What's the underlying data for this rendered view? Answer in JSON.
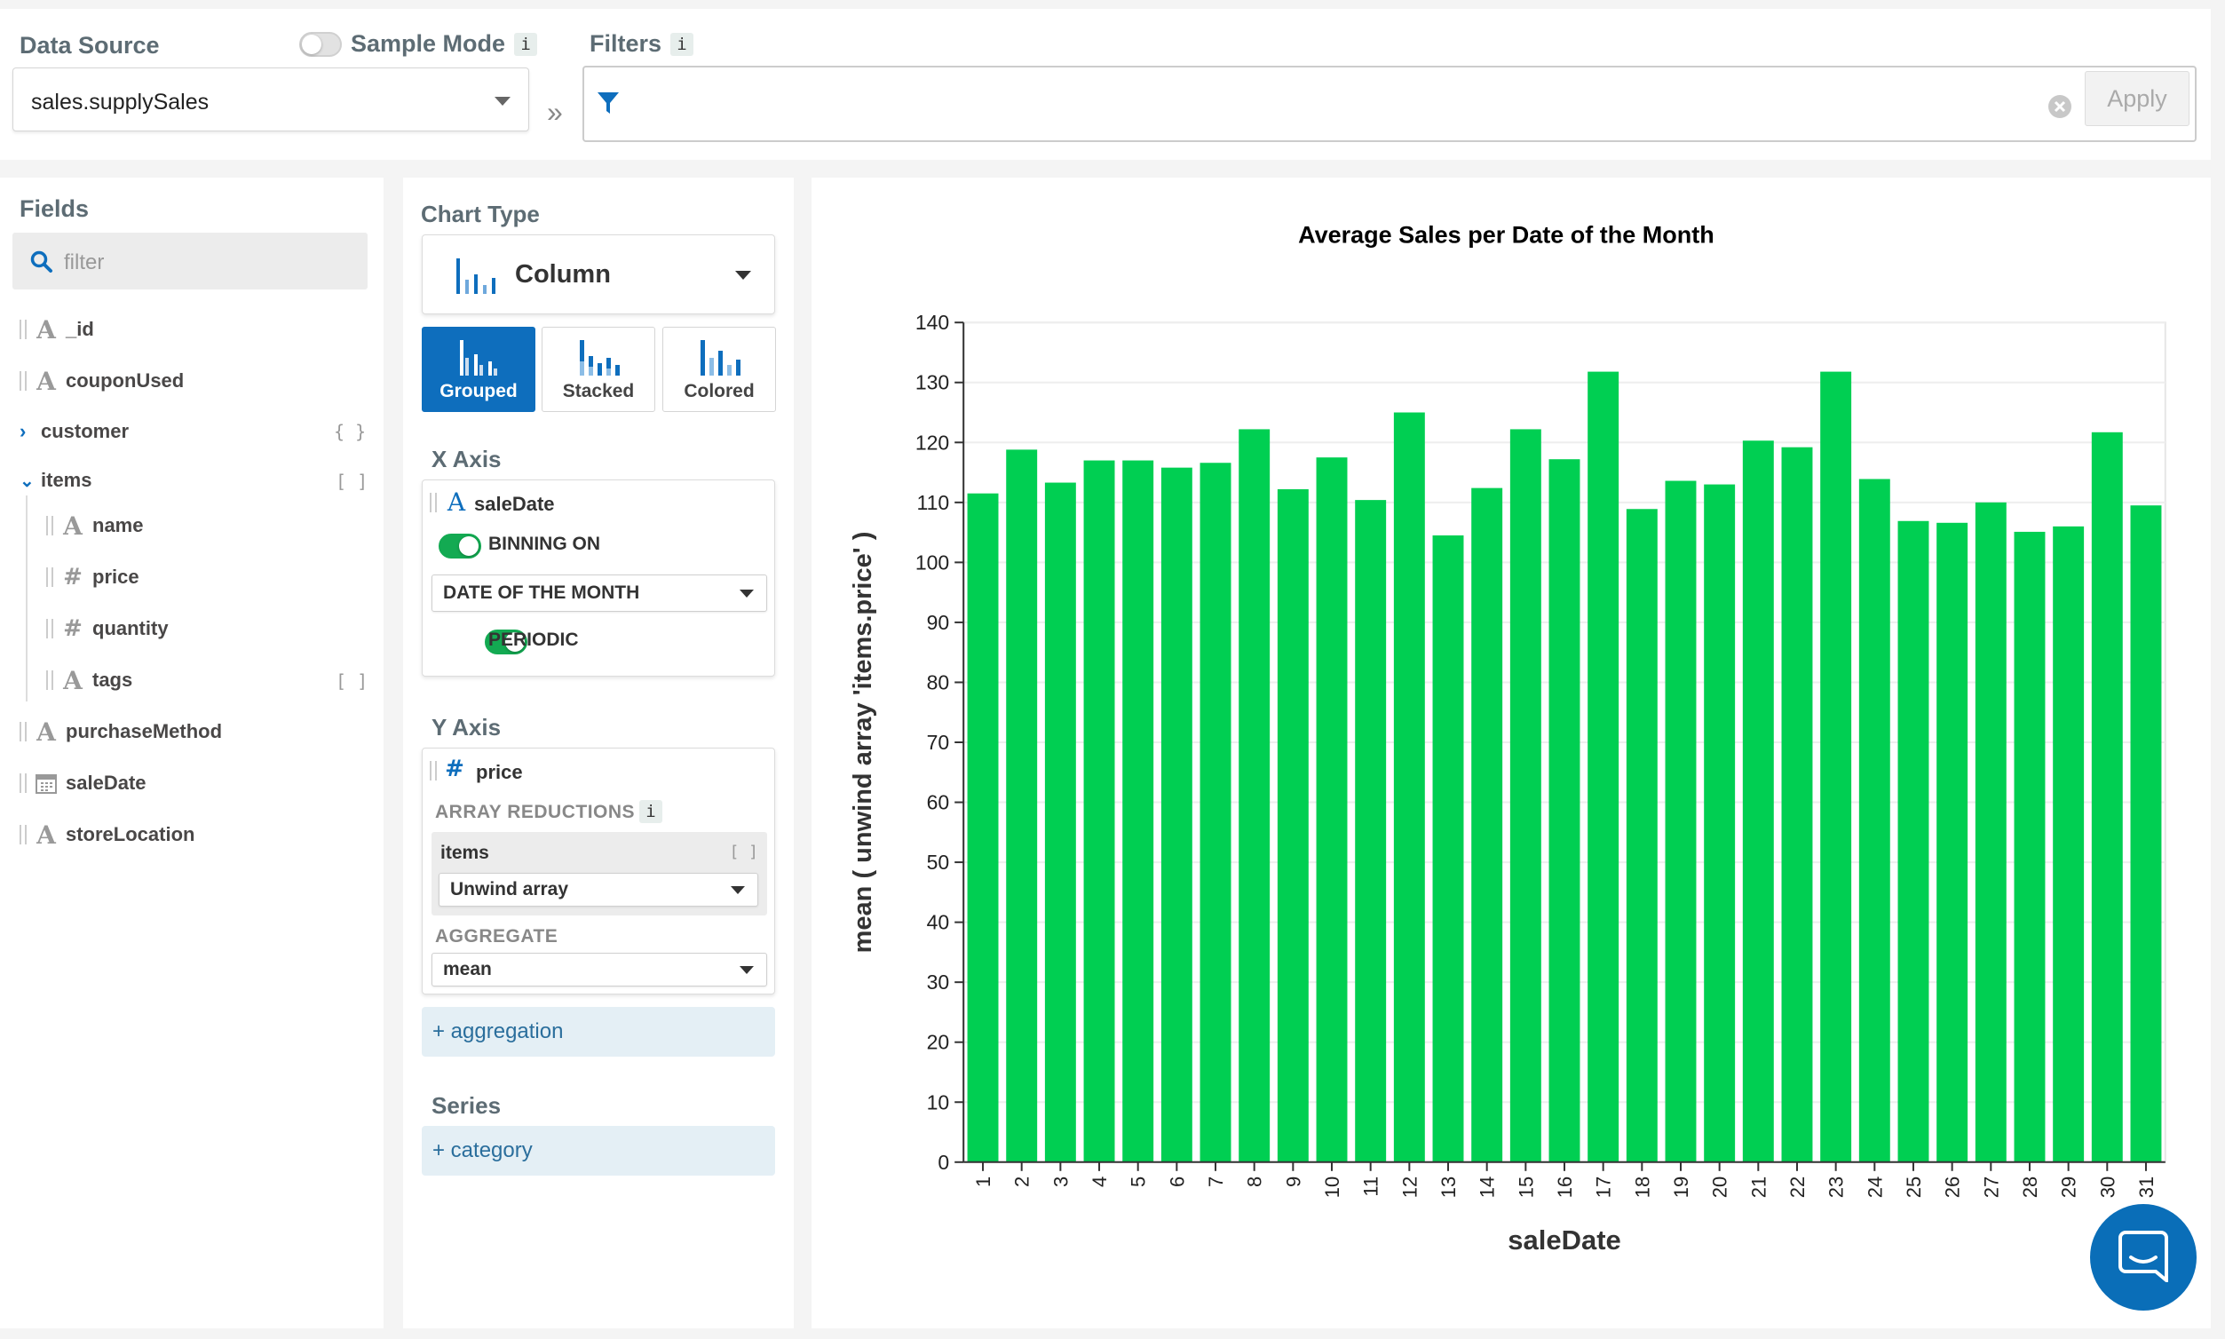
{
  "top": {
    "data_source_label": "Data Source",
    "sample_mode_label": "Sample Mode",
    "info_glyph": "i",
    "data_source_value": "sales.supplySales",
    "chevron_glyph": "»",
    "filters_label": "Filters",
    "apply_label": "Apply"
  },
  "fields": {
    "title": "Fields",
    "filter_placeholder": "filter",
    "items": [
      {
        "name": "_id",
        "type": "string"
      },
      {
        "name": "couponUsed",
        "type": "string"
      },
      {
        "name": "customer",
        "type": "object",
        "badge": "{ }"
      },
      {
        "name": "items",
        "type": "array",
        "badge": "[ ]"
      },
      {
        "name": "name",
        "type": "string"
      },
      {
        "name": "price",
        "type": "number"
      },
      {
        "name": "quantity",
        "type": "number"
      },
      {
        "name": "tags",
        "type": "string",
        "badge": "[ ]"
      },
      {
        "name": "purchaseMethod",
        "type": "string"
      },
      {
        "name": "saleDate",
        "type": "date"
      },
      {
        "name": "storeLocation",
        "type": "string"
      }
    ],
    "string_glyph": "A",
    "number_glyph": "#"
  },
  "encode": {
    "chart_type_title": "Chart Type",
    "chart_type_value": "Column",
    "subtypes": [
      "Grouped",
      "Stacked",
      "Colored"
    ],
    "x_axis_title": "X Axis",
    "x_field": "saleDate",
    "binning_label": "BINNING ON",
    "binning_value": "DATE OF THE MONTH",
    "periodic_label": "PERIODIC",
    "y_axis_title": "Y Axis",
    "y_field": "price",
    "array_reductions_label": "ARRAY REDUCTIONS",
    "reduction_field": "items",
    "reduction_value": "Unwind array",
    "aggregate_label": "AGGREGATE",
    "aggregate_value": "mean",
    "add_aggregation": "+ aggregation",
    "series_title": "Series",
    "add_category": "+ category"
  },
  "colors": {
    "accent": "#0e6ebd",
    "bar": "#00cf52",
    "toggle_on": "#13aa52"
  },
  "chart_data": {
    "type": "bar",
    "title": "Average Sales per Date of the Month",
    "xlabel": "saleDate",
    "ylabel": "mean ( unwind array 'items.price' )",
    "ylim": [
      0,
      140
    ],
    "yticks": [
      0,
      10,
      20,
      30,
      40,
      50,
      60,
      70,
      80,
      90,
      100,
      110,
      120,
      130,
      140
    ],
    "categories": [
      "1",
      "2",
      "3",
      "4",
      "5",
      "6",
      "7",
      "8",
      "9",
      "10",
      "11",
      "12",
      "13",
      "14",
      "15",
      "16",
      "17",
      "18",
      "19",
      "20",
      "21",
      "22",
      "23",
      "24",
      "25",
      "26",
      "27",
      "28",
      "29",
      "30",
      "31"
    ],
    "values": [
      111.5,
      118.8,
      113.3,
      117,
      117,
      115.8,
      116.6,
      122.2,
      112.2,
      117.5,
      110.4,
      125,
      104.5,
      112.4,
      122.2,
      117.2,
      131.8,
      108.9,
      113.6,
      113,
      120.3,
      119.2,
      131.8,
      113.9,
      106.9,
      106.6,
      110,
      105.1,
      106,
      121.7,
      109.5
    ],
    "grid": true,
    "legend": "none"
  }
}
